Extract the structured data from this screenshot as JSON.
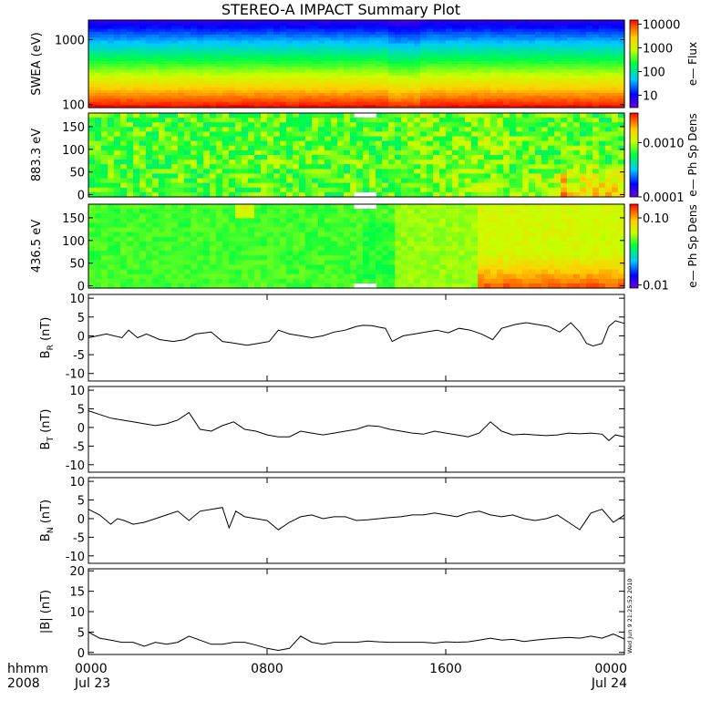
{
  "chart_data": {
    "title": "STEREO-A IMPACT Summary Plot",
    "type": "line",
    "x_time": {
      "range_hours": [
        0,
        24
      ],
      "tick_hours": [
        0,
        8,
        16,
        24
      ],
      "tick_labels": [
        "0000",
        "0800",
        "1600",
        "0000"
      ],
      "date_labels": [
        "Jul 23",
        "Jul 24"
      ],
      "corner_labels": [
        "hhmm",
        "2008"
      ]
    },
    "timestamp": "Wed Jun 9 21:25:52 2010",
    "spectrograms": [
      {
        "type": "heatmap",
        "ylabel": "SWEA (eV)",
        "ylim": [
          90,
          2000
        ],
        "yscale": "log",
        "yticks": [
          100,
          1000
        ],
        "ytick_labels": [
          "100",
          "1000"
        ],
        "colorbar": {
          "label": "e— Flux",
          "scale": "log",
          "ticks": [
            10,
            100,
            1000,
            10000
          ],
          "tick_labels": [
            "10",
            "100",
            "1000",
            "10000"
          ],
          "range": [
            3,
            15000
          ]
        }
      },
      {
        "type": "heatmap",
        "ylabel": "883.3 eV",
        "ylim": [
          -5,
          180
        ],
        "yticks": [
          0,
          50,
          100,
          150
        ],
        "ytick_labels": [
          "0",
          "50",
          "100",
          "150"
        ],
        "colorbar": {
          "label": "e— Ph Sp Dens",
          "scale": "log",
          "ticks": [
            0.0001,
            0.001
          ],
          "tick_labels": [
            "0.0001",
            "0.0010"
          ],
          "range": [
            0.0001,
            0.0035
          ]
        }
      },
      {
        "type": "heatmap",
        "ylabel": "436.5 eV",
        "ylim": [
          -5,
          180
        ],
        "yticks": [
          0,
          50,
          100,
          150
        ],
        "ytick_labels": [
          "0",
          "50",
          "100",
          "150"
        ],
        "colorbar": {
          "label": "e— Ph Sp Dens",
          "scale": "log",
          "ticks": [
            0.01,
            0.1
          ],
          "tick_labels": [
            "0.01",
            "0.10"
          ],
          "range": [
            0.009,
            0.16
          ]
        }
      }
    ],
    "line_panels": [
      {
        "ylabel_main": "B",
        "ylabel_sub": "R",
        "ylabel_unit": " (nT)",
        "ylim": [
          -12,
          11
        ],
        "yticks": [
          -10,
          -5,
          0,
          5,
          10
        ],
        "ytick_labels": [
          "-10",
          "-5",
          "0",
          "5",
          "10"
        ],
        "x_hours": [
          0,
          0.8,
          1.5,
          1.8,
          2.2,
          2.6,
          3.2,
          3.8,
          4.3,
          4.8,
          5.5,
          6,
          6.6,
          7.1,
          7.6,
          8.1,
          8.5,
          9,
          9.5,
          10,
          10.5,
          11,
          11.5,
          12,
          12.3,
          12.7,
          13,
          13.3,
          13.6,
          14.1,
          14.6,
          15.1,
          15.6,
          16.1,
          16.6,
          17.1,
          17.6,
          18.1,
          18.5,
          19.1,
          19.6,
          20.1,
          20.6,
          21.1,
          21.6,
          22,
          22.3,
          22.6,
          23,
          23.3,
          23.6,
          24
        ],
        "values": [
          -0.5,
          0.5,
          -0.5,
          1.5,
          -0.5,
          0.5,
          -1,
          -1.5,
          -1,
          0.5,
          1,
          -1.5,
          -2,
          -2.5,
          -2,
          -1.5,
          1.5,
          0.5,
          0,
          -0.5,
          0,
          1,
          1.5,
          2.5,
          2.8,
          2.7,
          2.3,
          2,
          -1.5,
          0,
          0.5,
          1,
          1.5,
          0.8,
          2,
          1.5,
          0.5,
          -1,
          2,
          3,
          3.5,
          3,
          2.5,
          1,
          3.5,
          1,
          -2,
          -2.7,
          -2,
          2.5,
          4,
          3.3
        ]
      },
      {
        "ylabel_main": "B",
        "ylabel_sub": "T",
        "ylabel_unit": " (nT)",
        "ylim": [
          -12,
          11
        ],
        "yticks": [
          -10,
          -5,
          0,
          5,
          10
        ],
        "ytick_labels": [
          "-10",
          "-5",
          "0",
          "5",
          "10"
        ],
        "x_hours": [
          0,
          0.5,
          1,
          1.5,
          2,
          2.5,
          3,
          3.5,
          4,
          4.5,
          5,
          5.5,
          6,
          6.5,
          7,
          7.5,
          8,
          8.5,
          9,
          9.5,
          10,
          10.5,
          11,
          11.5,
          12,
          12.5,
          13,
          13.5,
          14,
          14.5,
          15,
          15.5,
          16,
          16.5,
          17,
          17.5,
          18,
          18.5,
          19,
          19.5,
          20,
          20.5,
          21,
          21.5,
          22,
          22.5,
          23,
          23.3,
          23.6,
          24
        ],
        "values": [
          4.5,
          3.5,
          2.5,
          2,
          1.5,
          1,
          0.5,
          1,
          2,
          4,
          -0.5,
          -1,
          0.5,
          1.5,
          -0.5,
          -1,
          -2,
          -2.5,
          -2.5,
          -1,
          -1.5,
          -2,
          -1.5,
          -1,
          -0.5,
          0.5,
          0.3,
          -0.5,
          -1,
          -1.5,
          -1.8,
          -1,
          -1.5,
          -2,
          -2.5,
          -1.5,
          1.5,
          -1,
          -2,
          -1.8,
          -2,
          -2.2,
          -2,
          -1.5,
          -1.7,
          -1.5,
          -1.8,
          -3.5,
          -2,
          -2.5
        ]
      },
      {
        "ylabel_main": "B",
        "ylabel_sub": "N",
        "ylabel_unit": " (nT)",
        "ylim": [
          -12,
          11
        ],
        "yticks": [
          -10,
          -5,
          0,
          5,
          10
        ],
        "ytick_labels": [
          "-10",
          "-5",
          "0",
          "5",
          "10"
        ],
        "x_hours": [
          0,
          0.5,
          1,
          1.3,
          1.6,
          2,
          2.5,
          3,
          3.5,
          4,
          4.5,
          5,
          5.5,
          6,
          6.3,
          6.6,
          7,
          7.5,
          8,
          8.5,
          9,
          9.5,
          10,
          10.5,
          11,
          11.5,
          12,
          12.5,
          13,
          13.5,
          14,
          14.5,
          15,
          15.5,
          16,
          16.5,
          17,
          17.5,
          18,
          18.5,
          19,
          19.5,
          20,
          20.5,
          21,
          21.5,
          22,
          22.5,
          23,
          23.5,
          24
        ],
        "values": [
          2.5,
          1,
          -1.5,
          0,
          -0.5,
          -1.5,
          -1,
          0,
          1,
          2,
          -0.5,
          2,
          2.5,
          3,
          -2.5,
          2,
          0.5,
          0,
          -0.5,
          -3,
          -1,
          0.5,
          1,
          0,
          0.5,
          0.5,
          -0.5,
          -0.3,
          0,
          0.3,
          0.5,
          1,
          1,
          1.5,
          1,
          0.5,
          1.5,
          2,
          1,
          0.5,
          1,
          0,
          -0.5,
          0,
          1,
          -1,
          -3,
          1.5,
          2.5,
          -1,
          1
        ]
      },
      {
        "ylabel_main": "|B|",
        "ylabel_sub": "",
        "ylabel_unit": " (nT)",
        "ylim": [
          -0.5,
          20.5
        ],
        "yticks": [
          0,
          5,
          10,
          15,
          20
        ],
        "ytick_labels": [
          "0",
          "5",
          "10",
          "15",
          "20"
        ],
        "x_hours": [
          0,
          0.5,
          1,
          1.5,
          2,
          2.5,
          3,
          3.5,
          4,
          4.5,
          5,
          5.5,
          6,
          6.5,
          7,
          7.5,
          8,
          8.5,
          9,
          9.5,
          10,
          10.5,
          11,
          11.5,
          12,
          12.5,
          13,
          13.5,
          14,
          14.5,
          15,
          15.5,
          16,
          16.5,
          17,
          17.5,
          18,
          18.5,
          19,
          19.5,
          20,
          20.5,
          21,
          21.5,
          22,
          22.5,
          23,
          23.5,
          24
        ],
        "values": [
          5,
          3.5,
          3,
          2.5,
          2.5,
          1.5,
          2.5,
          2,
          2.5,
          4,
          3,
          2,
          2,
          2.5,
          2.5,
          1.8,
          1,
          0.5,
          1,
          4,
          2.5,
          2,
          2.5,
          2.5,
          2.5,
          2.8,
          2.6,
          2.5,
          2.5,
          2.5,
          2.5,
          2.3,
          2.6,
          2.5,
          2.6,
          3,
          3.5,
          3,
          3.2,
          2.7,
          3,
          3.3,
          3.5,
          3.7,
          3.5,
          4,
          3.5,
          4.5,
          3.3
        ]
      }
    ]
  }
}
